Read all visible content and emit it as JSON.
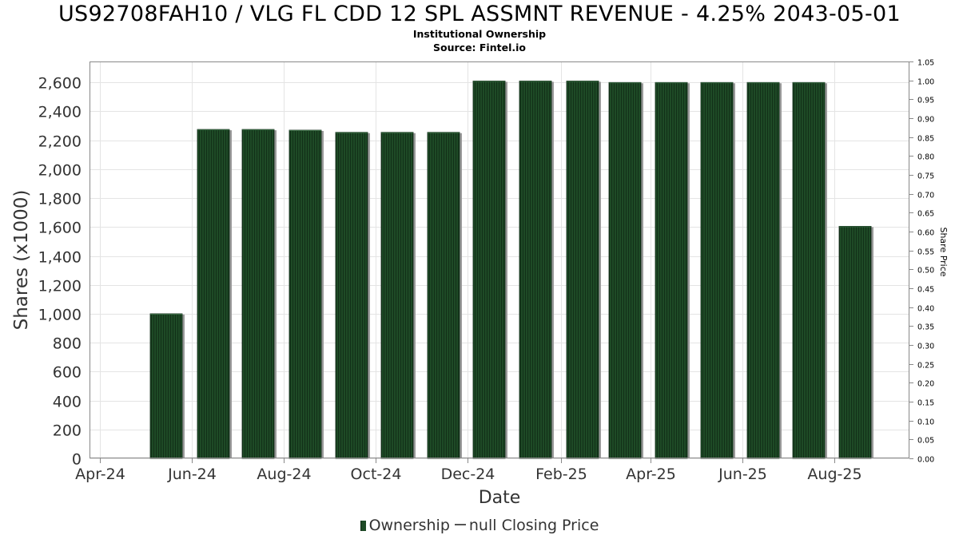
{
  "chart_data": {
    "type": "bar",
    "title": "US92708FAH10 / VLG FL CDD 12 SPL ASSMNT REVENUE - 4.25% 2043-05-01",
    "subtitle": "Institutional Ownership",
    "source": "Source: Fintel.io",
    "xlabel": "Date",
    "ylabel": "Shares (x1000)",
    "y2label": "Share Price",
    "x_ticks": [
      "Apr-24",
      "Jun-24",
      "Aug-24",
      "Oct-24",
      "Dec-24",
      "Feb-25",
      "Apr-25",
      "Jun-25",
      "Aug-25"
    ],
    "y_ticks": [
      "0",
      "200",
      "400",
      "600",
      "800",
      "1,000",
      "1,200",
      "1,400",
      "1,600",
      "1,800",
      "2,000",
      "2,200",
      "2,400",
      "2,600"
    ],
    "y2_ticks": [
      "0.00",
      "0.05",
      "0.10",
      "0.15",
      "0.20",
      "0.25",
      "0.30",
      "0.35",
      "0.40",
      "0.45",
      "0.50",
      "0.55",
      "0.60",
      "0.65",
      "0.70",
      "0.75",
      "0.80",
      "0.85",
      "0.90",
      "0.95",
      "1.00",
      "1.05"
    ],
    "ylim": [
      0,
      2745
    ],
    "y2lim": [
      0,
      1.05
    ],
    "grid": true,
    "series": [
      {
        "name": "Ownership",
        "color": "#1e4a26",
        "values": [
          {
            "x": "2024-05-15",
            "y": 1000
          },
          {
            "x": "2024-06-15",
            "y": 2275
          },
          {
            "x": "2024-07-15",
            "y": 2275
          },
          {
            "x": "2024-08-15",
            "y": 2270
          },
          {
            "x": "2024-09-15",
            "y": 2255
          },
          {
            "x": "2024-10-15",
            "y": 2255
          },
          {
            "x": "2024-11-15",
            "y": 2255
          },
          {
            "x": "2024-12-15",
            "y": 2610
          },
          {
            "x": "2025-01-15",
            "y": 2610
          },
          {
            "x": "2025-02-15",
            "y": 2610
          },
          {
            "x": "2025-03-15",
            "y": 2600
          },
          {
            "x": "2025-04-15",
            "y": 2600
          },
          {
            "x": "2025-05-15",
            "y": 2600
          },
          {
            "x": "2025-06-15",
            "y": 2600
          },
          {
            "x": "2025-07-15",
            "y": 2600
          },
          {
            "x": "2025-08-15",
            "y": 1605
          }
        ]
      }
    ],
    "legend": [
      {
        "label": "Ownership",
        "marker": "bar"
      },
      {
        "label": "null Closing Price",
        "marker": "line"
      }
    ],
    "legend_position": "bottom"
  }
}
